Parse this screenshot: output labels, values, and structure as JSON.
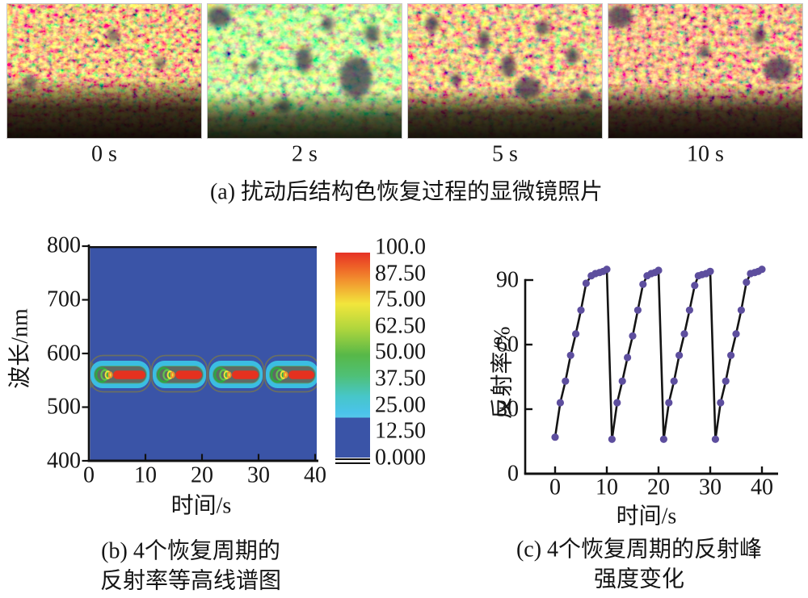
{
  "figure": {
    "background": "#ffffff"
  },
  "panel_a": {
    "caption": "(a) 扰动后结构色恢复过程的显微镜照片",
    "labels": [
      "0 s",
      "2 s",
      "5 s",
      "10 s"
    ]
  },
  "chart_data": [
    {
      "id": "panel-b",
      "type": "heatmap",
      "caption_line1": "(b) 4个恢复周期的",
      "caption_line2": "反射率等高线谱图",
      "xlabel": "时间/s",
      "ylabel": "波长/nm",
      "xlim": [
        0,
        41
      ],
      "ylim": [
        400,
        800
      ],
      "xticks": [
        "0",
        "10",
        "20",
        "30",
        "40"
      ],
      "yticks": [
        "800",
        "700",
        "600",
        "500",
        "400"
      ],
      "colorbar_labels": [
        "100.0",
        "87.50",
        "75.00",
        "62.50",
        "50.00",
        "37.50",
        "25.00",
        "12.50",
        "0.000"
      ],
      "peak_wavelength_nm": 560,
      "band_range_nm": [
        535,
        600
      ],
      "cycles": [
        {
          "start_s": 0,
          "end_s": 11
        },
        {
          "start_s": 11,
          "end_s": 21
        },
        {
          "start_s": 21,
          "end_s": 31
        },
        {
          "start_s": 31,
          "end_s": 41
        }
      ],
      "colors": {
        "background": "#3a54a7",
        "low_level": "#3bbde2",
        "band_interior": "#5f6b64",
        "teal_edge": "#49b08c",
        "contour_line": "#6a6f63",
        "green": "#2fa644",
        "light_green": "#5ec34e",
        "yellow": "#ece43a",
        "orange": "#ef8f2c",
        "peak": "#e5311f"
      }
    },
    {
      "id": "panel-c",
      "type": "scatter",
      "caption_line1": "(c) 4个恢复周期的反射峰",
      "caption_line2": "强度变化",
      "xlabel": "时间/s",
      "ylabel": "反射率/%",
      "xlim": [
        -2,
        41
      ],
      "ylim": [
        0,
        100
      ],
      "xticks": [
        "0",
        "10",
        "20",
        "30",
        "40"
      ],
      "yticks": [
        "90",
        "60",
        "30",
        "0"
      ],
      "line_color": "#141414",
      "marker_color": "#5d4e9e",
      "x": [
        0,
        1,
        2,
        3,
        4,
        5,
        6,
        7,
        7.8,
        8.6,
        9.3,
        10,
        11,
        12,
        13,
        14,
        15,
        16,
        17,
        17.8,
        18.6,
        19.3,
        20,
        21,
        22,
        23,
        24,
        25,
        26,
        27,
        27.7,
        28.4,
        29.2,
        30,
        31,
        32,
        33,
        34,
        35,
        36,
        37,
        37.8,
        38.6,
        39.3,
        40
      ],
      "y": [
        17,
        33,
        43,
        55,
        65,
        76,
        88.5,
        92,
        93,
        93.5,
        94,
        95,
        16,
        33,
        43,
        54,
        64,
        76,
        88,
        92,
        93,
        93.5,
        94.5,
        16,
        33,
        43,
        55,
        65,
        76,
        87.5,
        92,
        92.5,
        93,
        94,
        16,
        33,
        43,
        55,
        65,
        76,
        89,
        93,
        93.5,
        94,
        95
      ]
    }
  ]
}
